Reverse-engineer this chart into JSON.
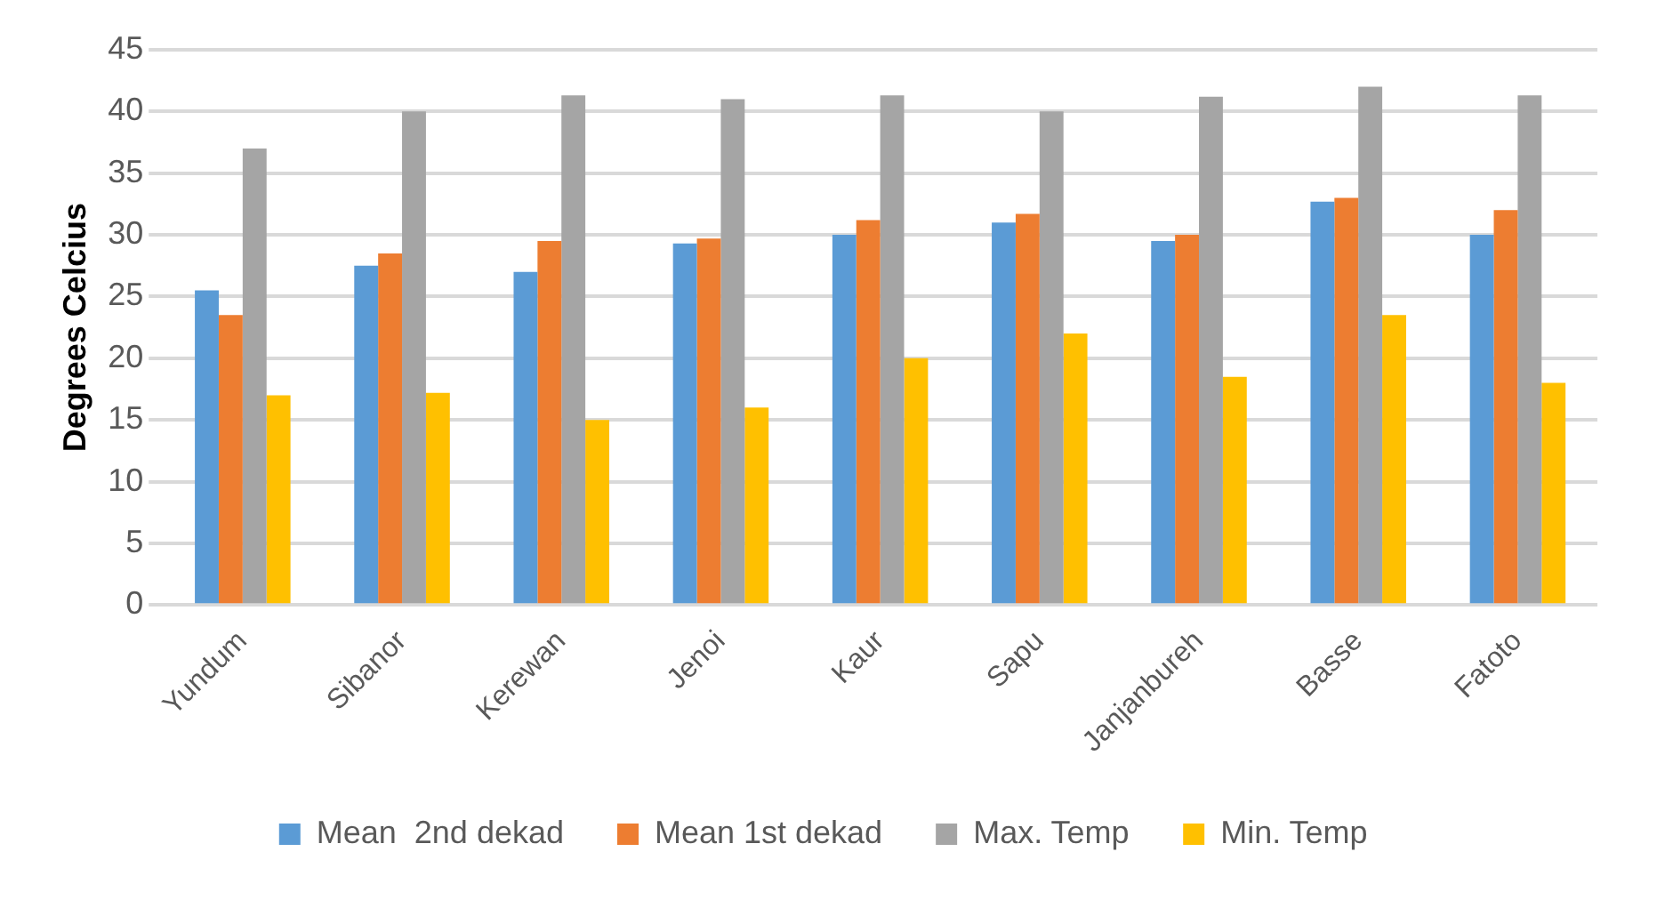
{
  "chart_data": {
    "type": "bar",
    "ylabel": "Degrees Celcius",
    "categories": [
      "Yundum",
      "Sibanor",
      "Kerewan",
      "Jenoi",
      "Kaur",
      "Sapu",
      "Janjanbureh",
      "Basse",
      "Fatoto"
    ],
    "series": [
      {
        "name": "Mean  2nd dekad",
        "color": "#5b9bd5",
        "values": [
          25.5,
          27.5,
          27,
          29.3,
          30,
          31,
          29.5,
          32.7,
          30
        ]
      },
      {
        "name": "Mean 1st dekad",
        "color": "#ed7d31",
        "values": [
          23.5,
          28.5,
          29.5,
          29.7,
          31.2,
          31.7,
          30,
          33,
          32
        ]
      },
      {
        "name": "Max. Temp",
        "color": "#a5a5a5",
        "values": [
          37,
          40,
          41.3,
          41,
          41.3,
          40,
          41.2,
          42,
          41.3
        ]
      },
      {
        "name": "Min. Temp",
        "color": "#ffc000",
        "values": [
          17,
          17.2,
          15,
          16,
          20,
          22,
          18.5,
          23.5,
          18
        ]
      }
    ],
    "ylim": [
      0,
      45
    ],
    "yticks": [
      0,
      5,
      10,
      15,
      20,
      25,
      30,
      35,
      40,
      45
    ],
    "grid": "y",
    "legend": "bottom"
  }
}
